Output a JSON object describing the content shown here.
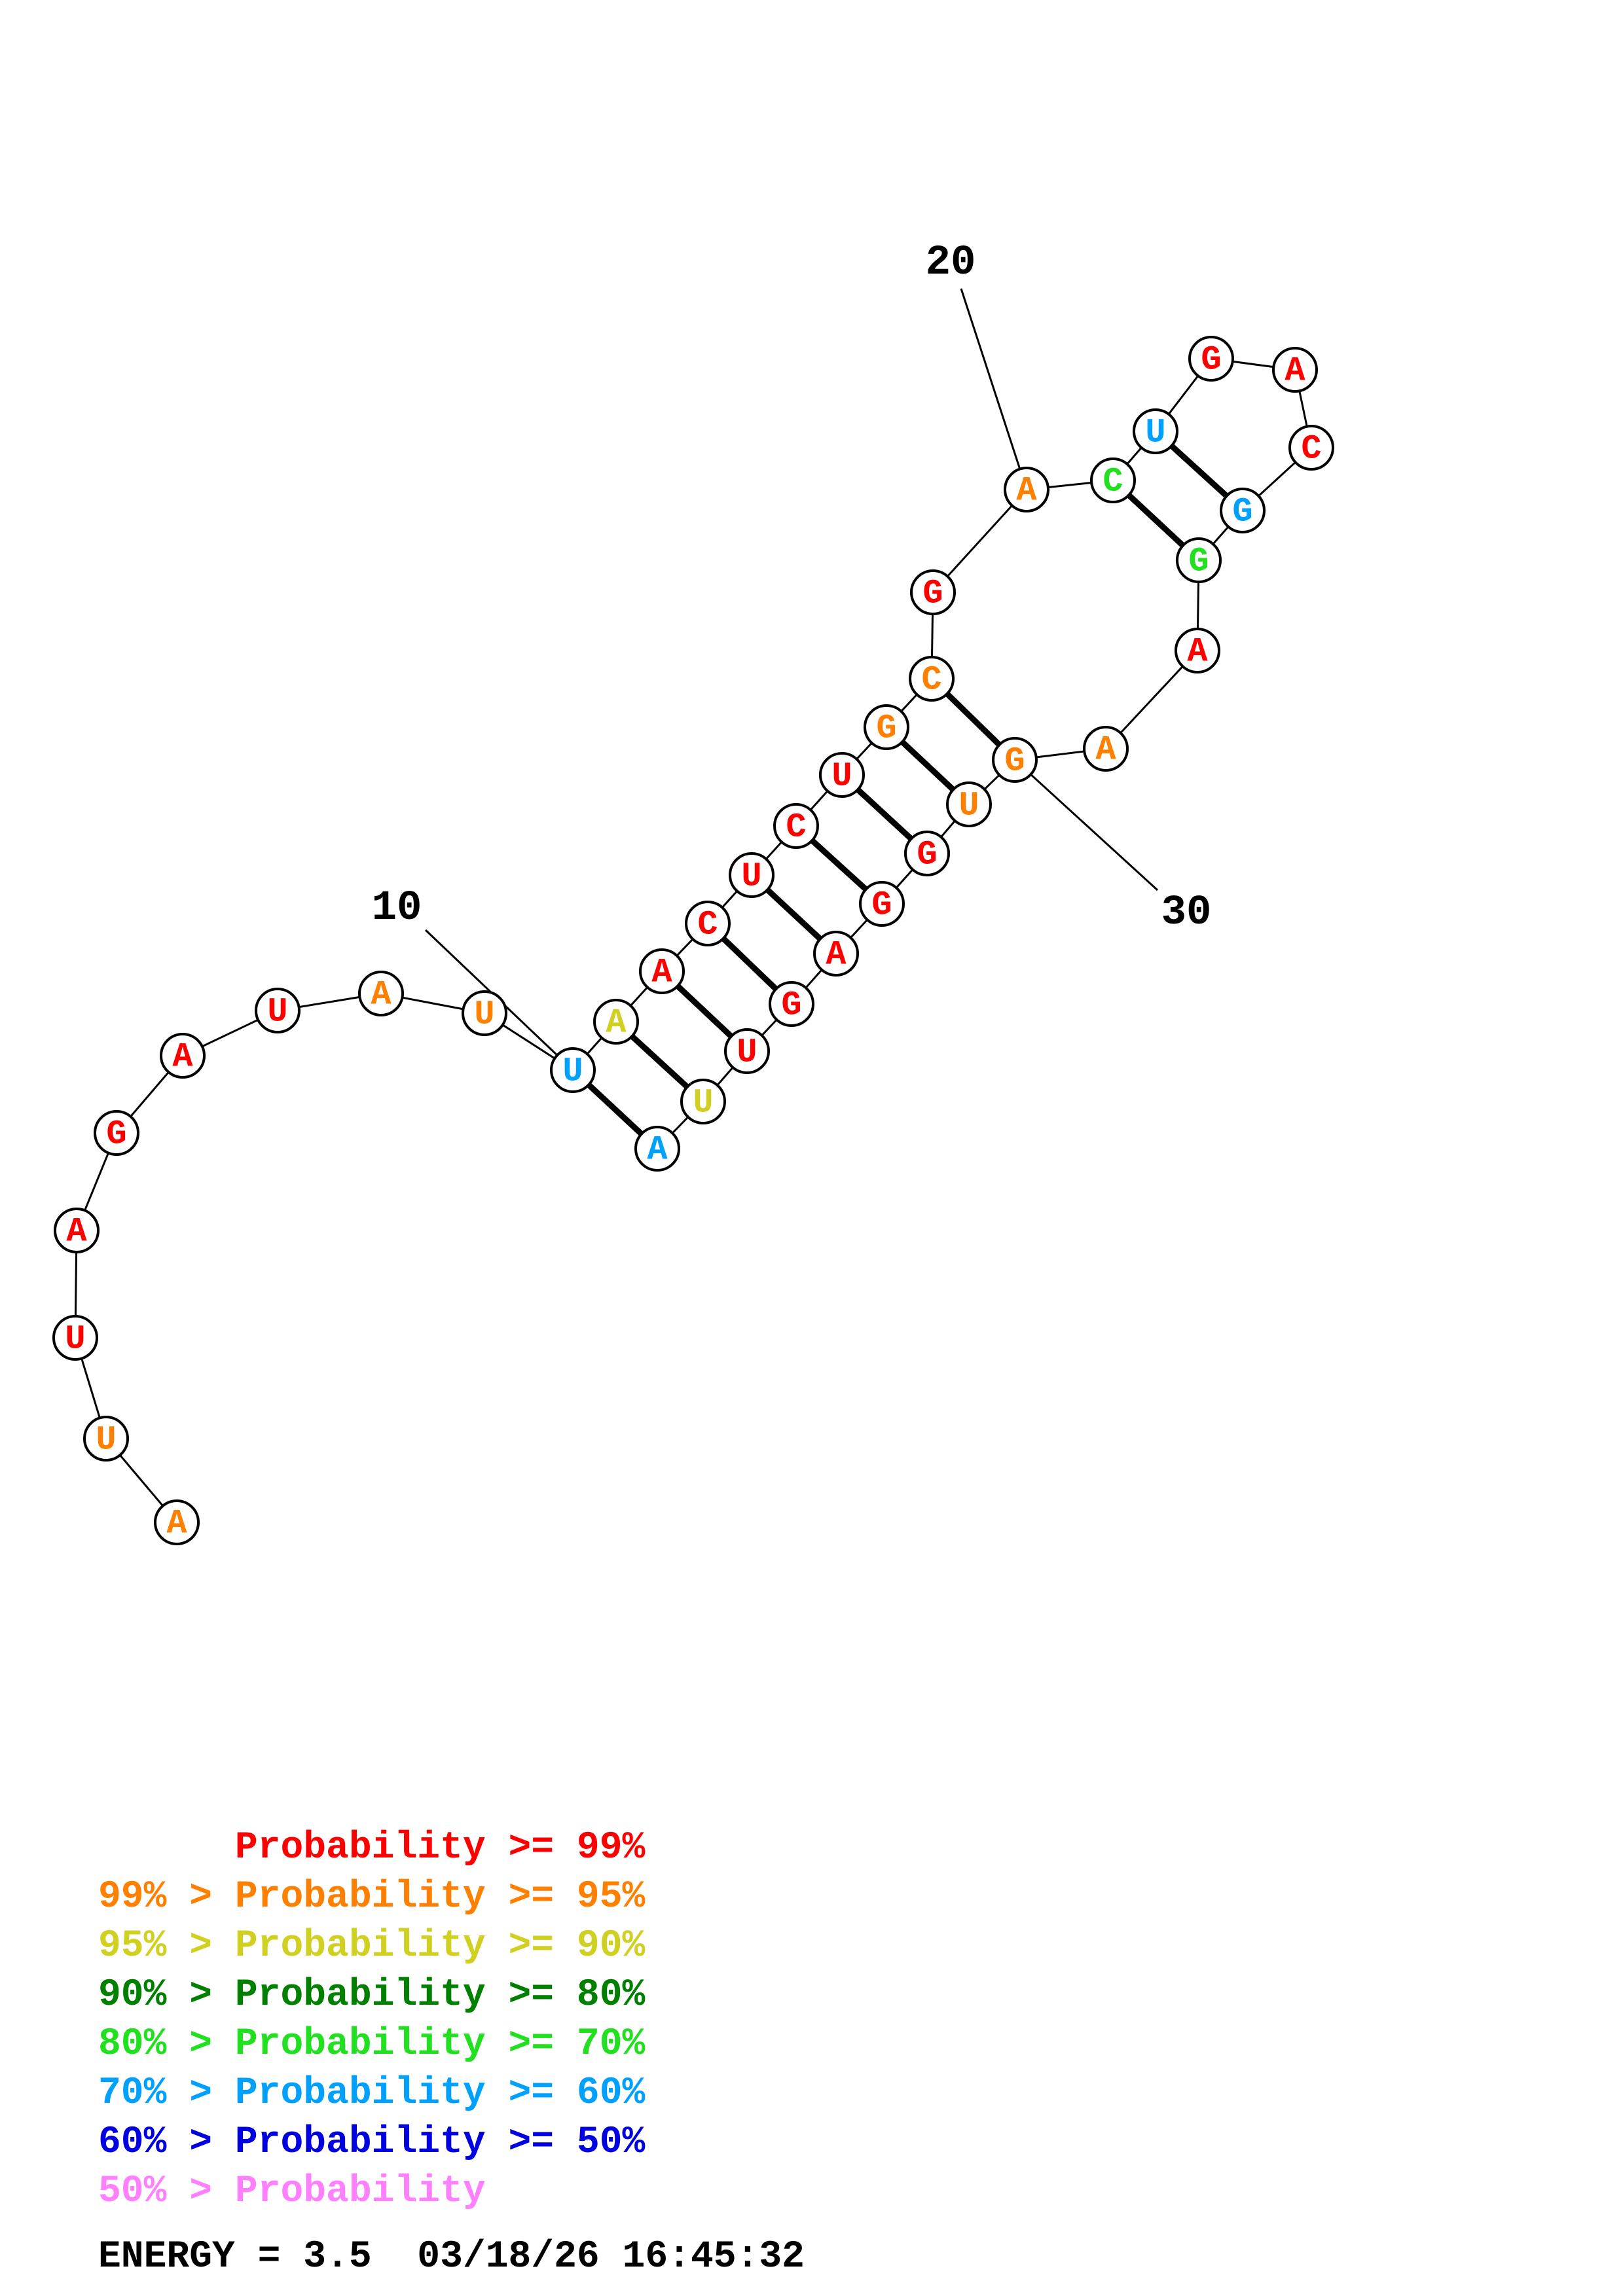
{
  "nucleotides": [
    {
      "letter": "A",
      "color": "#ff8000"
    },
    {
      "letter": "U",
      "color": "#ff8000"
    },
    {
      "letter": "U",
      "color": "#ff0000"
    },
    {
      "letter": "A",
      "color": "#ff0000"
    },
    {
      "letter": "G",
      "color": "#ff0000"
    },
    {
      "letter": "A",
      "color": "#ff0000"
    },
    {
      "letter": "U",
      "color": "#ff0000"
    },
    {
      "letter": "A",
      "color": "#ff8000"
    },
    {
      "letter": "U",
      "color": "#ff8000"
    },
    {
      "letter": "U",
      "color": "#00a0ff"
    },
    {
      "letter": "A",
      "color": "#d0d020"
    },
    {
      "letter": "A",
      "color": "#ff0000"
    },
    {
      "letter": "C",
      "color": "#ff0000"
    },
    {
      "letter": "U",
      "color": "#ff0000"
    },
    {
      "letter": "C",
      "color": "#ff0000"
    },
    {
      "letter": "U",
      "color": "#ff0000"
    },
    {
      "letter": "G",
      "color": "#ff8000"
    },
    {
      "letter": "C",
      "color": "#ff8000"
    },
    {
      "letter": "G",
      "color": "#ff0000"
    },
    {
      "letter": "A",
      "color": "#ff8000"
    },
    {
      "letter": "C",
      "color": "#20e020"
    },
    {
      "letter": "U",
      "color": "#00a0ff"
    },
    {
      "letter": "G",
      "color": "#ff0000"
    },
    {
      "letter": "A",
      "color": "#ff0000"
    },
    {
      "letter": "C",
      "color": "#ff0000"
    },
    {
      "letter": "G",
      "color": "#00a0ff"
    },
    {
      "letter": "G",
      "color": "#20e020"
    },
    {
      "letter": "A",
      "color": "#ff0000"
    },
    {
      "letter": "A",
      "color": "#ff8000"
    },
    {
      "letter": "G",
      "color": "#ff8000"
    },
    {
      "letter": "U",
      "color": "#ff8000"
    },
    {
      "letter": "G",
      "color": "#ff0000"
    },
    {
      "letter": "G",
      "color": "#ff0000"
    },
    {
      "letter": "A",
      "color": "#ff0000"
    },
    {
      "letter": "G",
      "color": "#ff0000"
    },
    {
      "letter": "U",
      "color": "#ff0000"
    },
    {
      "letter": "U",
      "color": "#d0d020"
    },
    {
      "letter": "A",
      "color": "#00a0ff"
    }
  ],
  "pairs": [
    [
      10,
      38
    ],
    [
      11,
      37
    ],
    [
      12,
      36
    ],
    [
      13,
      35
    ],
    [
      14,
      34
    ],
    [
      15,
      33
    ],
    [
      16,
      32
    ],
    [
      17,
      31
    ],
    [
      18,
      30
    ],
    [
      21,
      27
    ],
    [
      22,
      26
    ]
  ],
  "position_labels": [
    {
      "position": 10,
      "text": "10"
    },
    {
      "position": 20,
      "text": "20"
    },
    {
      "position": 30,
      "text": "30"
    }
  ],
  "legend": [
    {
      "text": "      Probability >= 99%",
      "color": "#ff0000"
    },
    {
      "text": "99% > Probability >= 95%",
      "color": "#ff8000"
    },
    {
      "text": "95% > Probability >= 90%",
      "color": "#d0d020"
    },
    {
      "text": "90% > Probability >= 80%",
      "color": "#008000"
    },
    {
      "text": "80% > Probability >= 70%",
      "color": "#20e020"
    },
    {
      "text": "70% > Probability >= 60%",
      "color": "#00a0ff"
    },
    {
      "text": "60% > Probability >= 50%",
      "color": "#0000e0"
    },
    {
      "text": "50% > Probability",
      "color": "#ff80ff"
    }
  ],
  "footer": "ENERGY = 3.5  03/18/26 16:45:32"
}
